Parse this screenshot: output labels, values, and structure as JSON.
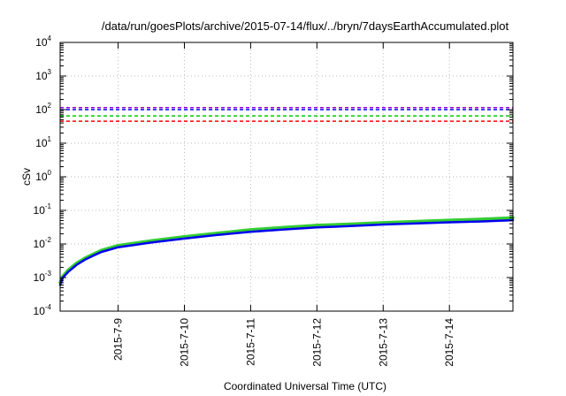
{
  "chart_data": {
    "type": "line",
    "title": "/data/run/goesPlots/archive/2015-07-14/flux/../bryn/7daysEarthAccumulated.plot",
    "xlabel": "Coordinated Universal Time (UTC)",
    "ylabel": "cSv",
    "xlim": [
      "2015-07-08T03:00",
      "2015-07-14T23:00"
    ],
    "ylim": [
      0.0001,
      10000
    ],
    "yscale": "log",
    "x_ticks": [
      "2015-7-9",
      "2015-7-10",
      "2015-7-11",
      "2015-7-12",
      "2015-7-13",
      "2015-7-14"
    ],
    "x_tick_dates": [
      "2015-07-09",
      "2015-07-10",
      "2015-07-11",
      "2015-07-12",
      "2015-07-13",
      "2015-07-14"
    ],
    "y_tick_exponents": [
      -4,
      -3,
      -2,
      -1,
      0,
      1,
      2,
      3,
      4
    ],
    "y_tick_base": "10",
    "grid": true,
    "reference_lines": [
      {
        "y": 115,
        "color": "#9400d3",
        "style": "dashed"
      },
      {
        "y": 100,
        "color": "#0000ff",
        "style": "dashed"
      },
      {
        "y": 65,
        "color": "#00cc00",
        "style": "dashed"
      },
      {
        "y": 45,
        "color": "#ff0000",
        "style": "dashed"
      }
    ],
    "series": [
      {
        "color": "#33cc33",
        "x": [
          "2015-07-08T03:00",
          "2015-07-08T04:00",
          "2015-07-08T06:00",
          "2015-07-08T09:00",
          "2015-07-08T12:00",
          "2015-07-08T15:00",
          "2015-07-08T18:00",
          "2015-07-09T00:00",
          "2015-07-09T12:00",
          "2015-07-10T00:00",
          "2015-07-10T12:00",
          "2015-07-11T00:00",
          "2015-07-11T12:00",
          "2015-07-12T00:00",
          "2015-07-12T12:00",
          "2015-07-13T00:00",
          "2015-07-13T12:00",
          "2015-07-14T00:00",
          "2015-07-14T12:00",
          "2015-07-14T23:00"
        ],
        "values": [
          0.0007,
          0.0011,
          0.0017,
          0.0027,
          0.0038,
          0.005,
          0.0065,
          0.009,
          0.0125,
          0.0165,
          0.021,
          0.0265,
          0.031,
          0.036,
          0.039,
          0.043,
          0.047,
          0.051,
          0.055,
          0.06
        ]
      },
      {
        "color": "#0000ee",
        "x": [
          "2015-07-08T03:00",
          "2015-07-08T04:00",
          "2015-07-08T06:00",
          "2015-07-08T09:00",
          "2015-07-08T12:00",
          "2015-07-08T15:00",
          "2015-07-08T18:00",
          "2015-07-09T00:00",
          "2015-07-09T12:00",
          "2015-07-10T00:00",
          "2015-07-10T12:00",
          "2015-07-11T00:00",
          "2015-07-11T12:00",
          "2015-07-12T00:00",
          "2015-07-12T12:00",
          "2015-07-13T00:00",
          "2015-07-13T12:00",
          "2015-07-14T00:00",
          "2015-07-14T12:00",
          "2015-07-14T23:00"
        ],
        "values": [
          0.0006,
          0.001,
          0.0015,
          0.0024,
          0.0034,
          0.0045,
          0.0058,
          0.008,
          0.011,
          0.0145,
          0.0185,
          0.023,
          0.027,
          0.031,
          0.034,
          0.038,
          0.041,
          0.044,
          0.047,
          0.051
        ]
      }
    ]
  }
}
